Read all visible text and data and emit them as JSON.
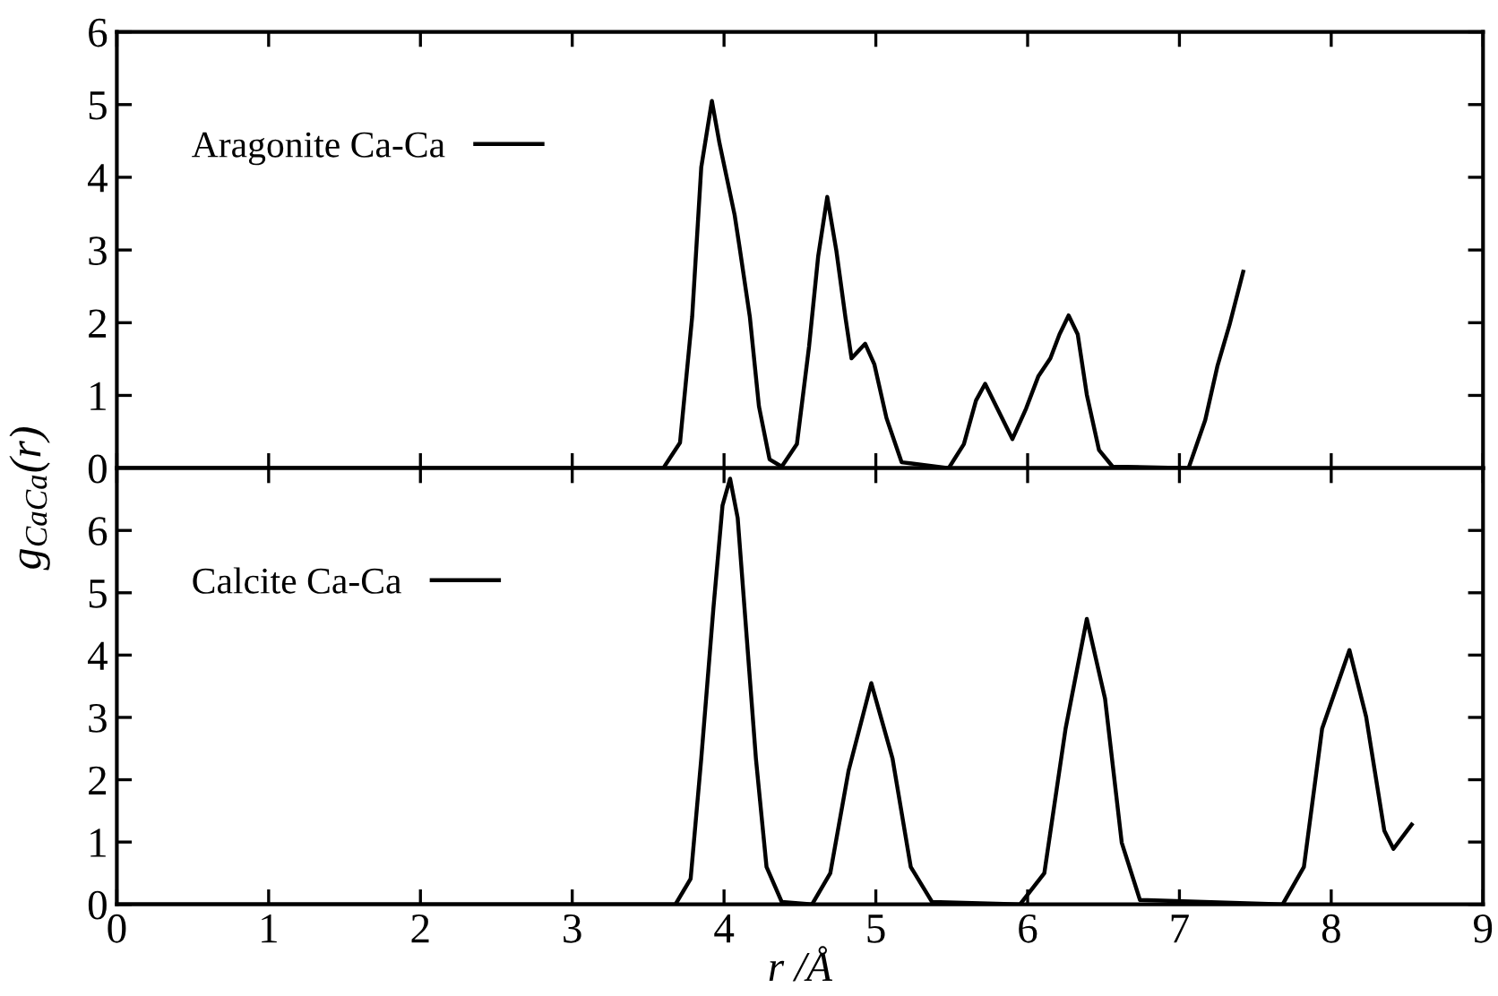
{
  "chart_data": [
    {
      "type": "line",
      "ylabel": "g$_{CaCa}$(r)",
      "xlim": [
        0,
        9
      ],
      "xticks": [
        0,
        1,
        2,
        3,
        4,
        5,
        6,
        7,
        8,
        9
      ],
      "ylim": [
        0,
        6
      ],
      "yticks": [
        0,
        1,
        2,
        3,
        4,
        5,
        6
      ],
      "tick_labels": "y",
      "legend": "top left",
      "grid": false,
      "series": [
        {
          "name": "Aragonite Ca-Ca",
          "color": "#000000",
          "x": [
            0,
            3.6,
            3.71,
            3.79,
            3.85,
            3.92,
            3.97,
            4.07,
            4.1,
            4.17,
            4.23,
            4.3,
            4.38,
            4.48,
            4.56,
            4.62,
            4.68,
            4.74,
            4.8,
            4.84,
            4.93,
            4.99,
            5.07,
            5.17,
            5.48,
            5.58,
            5.66,
            5.72,
            5.8,
            5.9,
            5.99,
            6.07,
            6.15,
            6.21,
            6.27,
            6.33,
            6.39,
            6.47,
            6.56,
            7.06,
            7.17,
            7.25,
            7.33,
            7.42
          ],
          "values": [
            0,
            0,
            0.35,
            2.08,
            4.14,
            5.05,
            4.47,
            3.48,
            3.07,
            2.08,
            0.85,
            0.12,
            0.02,
            0.33,
            1.67,
            2.91,
            3.73,
            2.99,
            2.07,
            1.51,
            1.71,
            1.43,
            0.69,
            0.08,
            0,
            0.33,
            0.93,
            1.16,
            0.82,
            0.4,
            0.82,
            1.26,
            1.51,
            1.84,
            2.1,
            1.84,
            1.01,
            0.25,
            0.02,
            0,
            0.66,
            1.4,
            1.97,
            2.7
          ]
        }
      ]
    },
    {
      "type": "line",
      "xlabel": "r /Å",
      "xlim": [
        0,
        9
      ],
      "xticks": [
        0,
        1,
        2,
        3,
        4,
        5,
        6,
        7,
        8,
        9
      ],
      "ylim": [
        0,
        7
      ],
      "yticks": [
        0,
        1,
        2,
        3,
        4,
        5,
        6
      ],
      "legend": "top left",
      "grid": false,
      "series": [
        {
          "name": "Calcite Ca-Ca",
          "color": "#000000",
          "x": [
            0,
            3.68,
            3.78,
            3.85,
            3.93,
            3.99,
            4.04,
            4.09,
            4.15,
            4.21,
            4.28,
            4.38,
            4.58,
            4.7,
            4.82,
            4.97,
            5.11,
            5.23,
            5.37,
            5.95,
            6.11,
            6.25,
            6.39,
            6.51,
            6.62,
            6.74,
            7.68,
            7.82,
            7.94,
            8.12,
            8.23,
            8.35,
            8.41,
            8.53
          ],
          "values": [
            0,
            0,
            0.41,
            2.34,
            4.75,
            6.4,
            6.83,
            6.2,
            4.27,
            2.34,
            0.6,
            0.04,
            0,
            0.5,
            2.14,
            3.55,
            2.34,
            0.6,
            0.04,
            0,
            0.5,
            2.82,
            4.58,
            3.3,
            0.99,
            0.07,
            0,
            0.6,
            2.82,
            4.08,
            3.01,
            1.18,
            0.89,
            1.28
          ]
        }
      ]
    }
  ]
}
